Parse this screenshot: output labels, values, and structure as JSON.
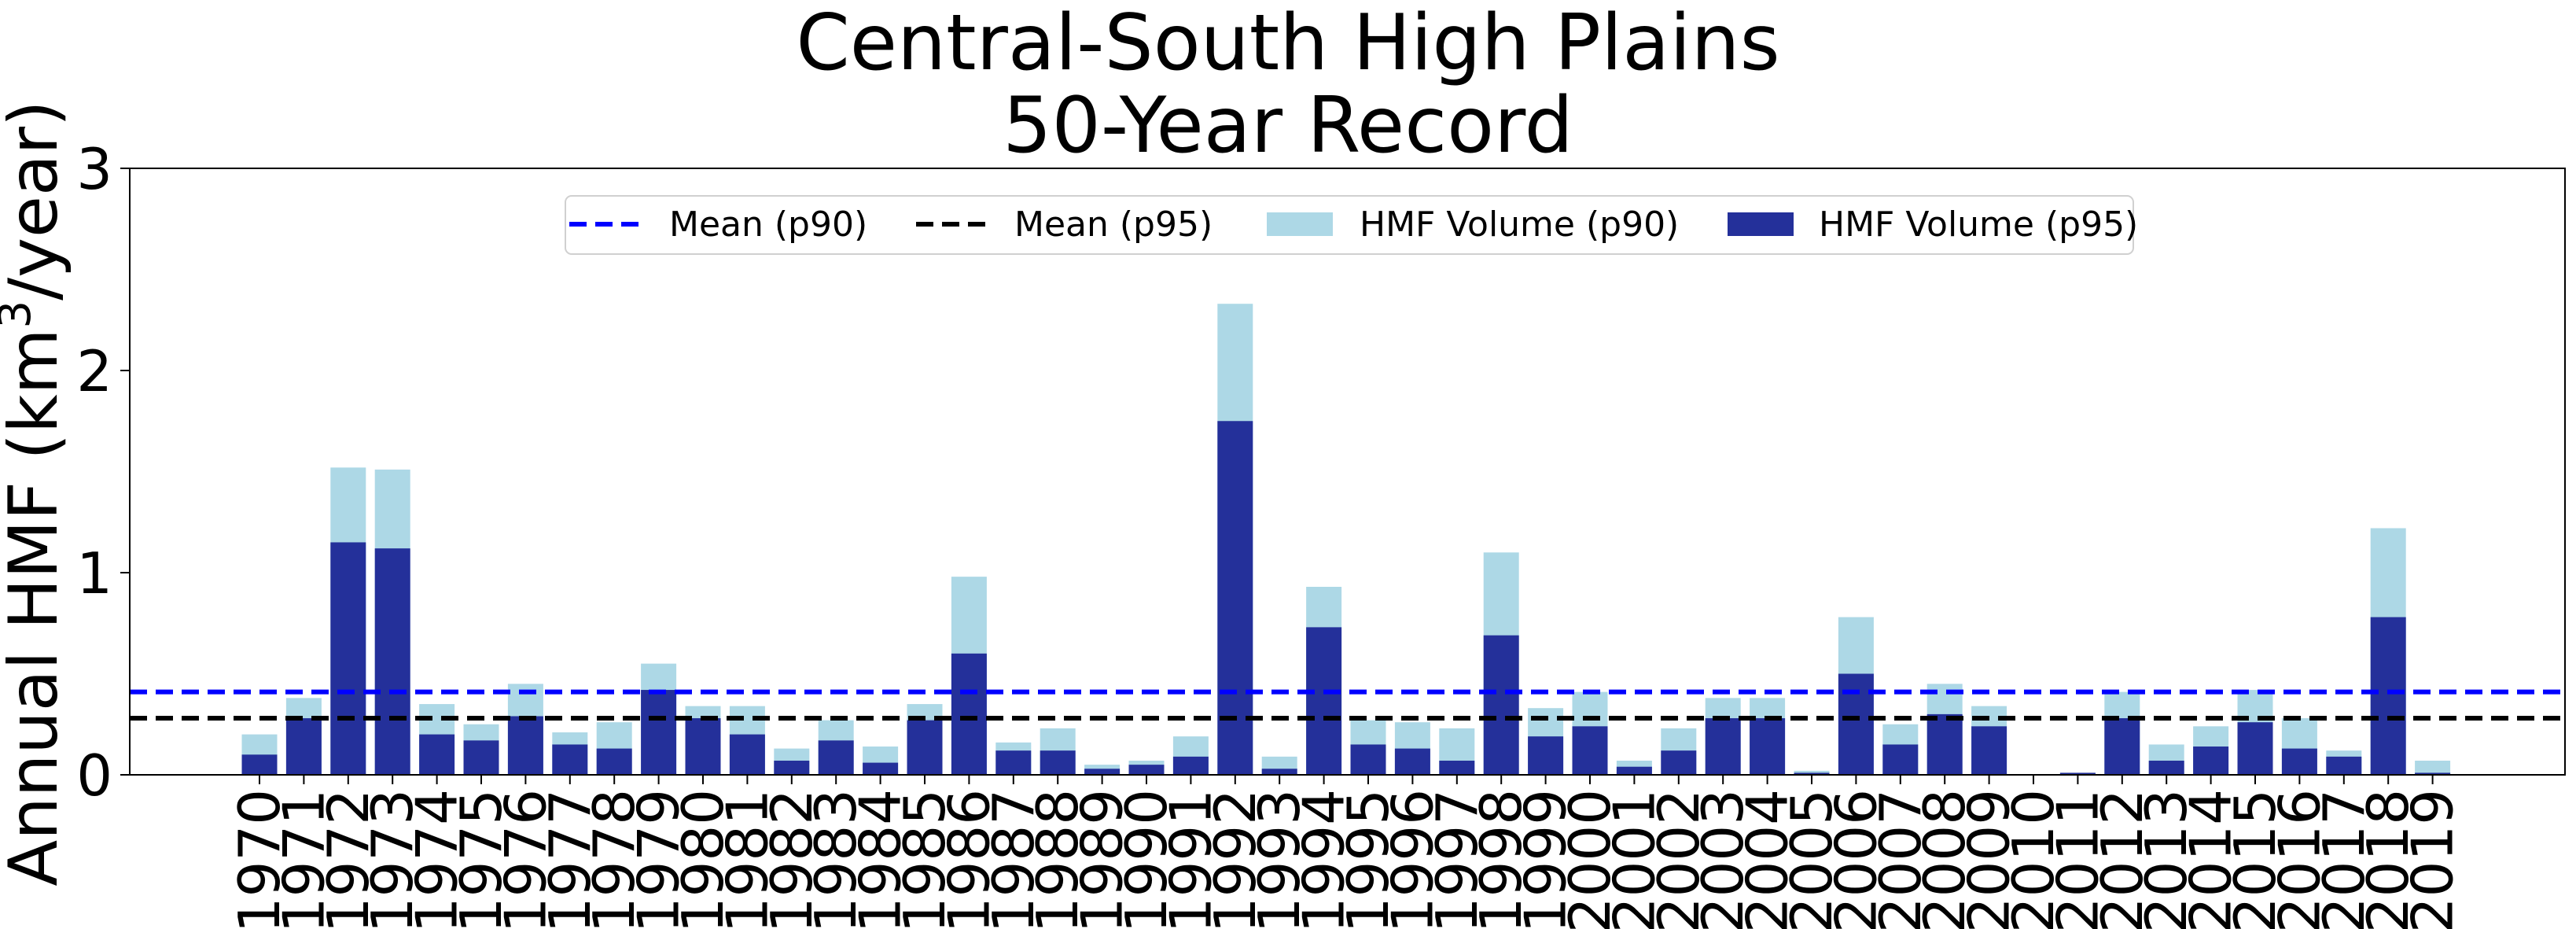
{
  "chart_data": {
    "type": "bar",
    "title": "Central-South High Plains\n50-Year Record",
    "title_line1": "Central-South High Plains",
    "title_line2": "50-Year Record",
    "xlabel": "",
    "ylabel": "Annual HMF (km",
    "ylabel_sup": "3",
    "ylabel_tail": "/year)",
    "ylim": [
      0,
      3
    ],
    "yticks": [
      "0",
      "1",
      "2",
      "3"
    ],
    "grid": false,
    "legend_placement": "upper center",
    "categories": [
      "1970",
      "1971",
      "1972",
      "1973",
      "1974",
      "1975",
      "1976",
      "1977",
      "1978",
      "1979",
      "1980",
      "1981",
      "1982",
      "1983",
      "1984",
      "1985",
      "1986",
      "1987",
      "1988",
      "1989",
      "1990",
      "1991",
      "1992",
      "1993",
      "1994",
      "1995",
      "1996",
      "1997",
      "1998",
      "1999",
      "2000",
      "2001",
      "2002",
      "2003",
      "2004",
      "2005",
      "2006",
      "2007",
      "2008",
      "2009",
      "2010",
      "2011",
      "2012",
      "2013",
      "2014",
      "2015",
      "2016",
      "2017",
      "2018",
      "2019"
    ],
    "series": [
      {
        "name": "HMF Volume (p90)",
        "color": "#add8e6",
        "values": [
          0.2,
          0.38,
          1.52,
          1.51,
          0.35,
          0.25,
          0.45,
          0.21,
          0.26,
          0.55,
          0.34,
          0.34,
          0.13,
          0.27,
          0.14,
          0.35,
          0.98,
          0.16,
          0.23,
          0.05,
          0.07,
          0.19,
          2.33,
          0.09,
          0.93,
          0.27,
          0.26,
          0.23,
          1.1,
          0.33,
          0.41,
          0.07,
          0.23,
          0.38,
          0.38,
          0.02,
          0.78,
          0.25,
          0.45,
          0.34,
          0.0,
          0.01,
          0.41,
          0.15,
          0.24,
          0.42,
          0.28,
          0.12,
          1.22,
          0.07
        ]
      },
      {
        "name": "HMF Volume (p95)",
        "color": "#24309a",
        "values": [
          0.1,
          0.28,
          1.15,
          1.12,
          0.2,
          0.17,
          0.29,
          0.15,
          0.13,
          0.42,
          0.28,
          0.2,
          0.07,
          0.17,
          0.06,
          0.27,
          0.6,
          0.12,
          0.12,
          0.03,
          0.05,
          0.09,
          1.75,
          0.03,
          0.73,
          0.15,
          0.13,
          0.07,
          0.69,
          0.19,
          0.24,
          0.04,
          0.12,
          0.28,
          0.28,
          0.01,
          0.5,
          0.15,
          0.3,
          0.24,
          0.0,
          0.01,
          0.28,
          0.07,
          0.14,
          0.26,
          0.13,
          0.09,
          0.78,
          0.01
        ]
      }
    ],
    "reference_lines": [
      {
        "name": "Mean (p90)",
        "value": 0.41,
        "color": "#0000ff",
        "style": "dashed"
      },
      {
        "name": "Mean (p95)",
        "value": 0.28,
        "color": "#000000",
        "style": "dashed"
      }
    ],
    "legend": [
      {
        "label": "Mean (p90)",
        "kind": "line",
        "color": "#0000ff"
      },
      {
        "label": "Mean (p95)",
        "kind": "line",
        "color": "#000000"
      },
      {
        "label": "HMF Volume (p90)",
        "kind": "patch",
        "color": "#add8e6"
      },
      {
        "label": "HMF Volume (p95)",
        "kind": "patch",
        "color": "#24309a"
      }
    ]
  }
}
